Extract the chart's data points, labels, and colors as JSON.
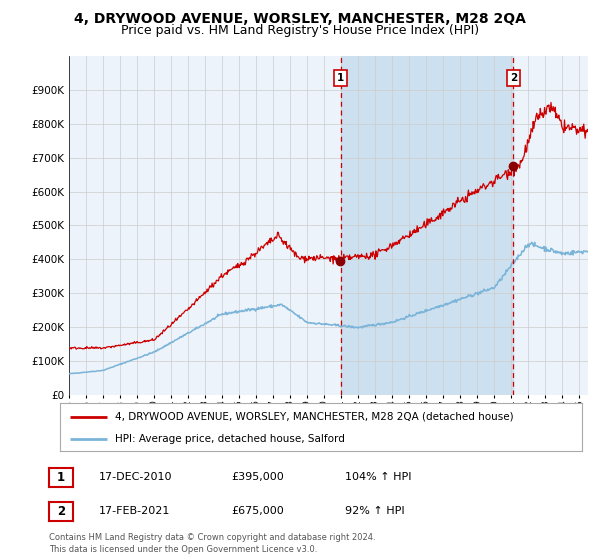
{
  "title": "4, DRYWOOD AVENUE, WORSLEY, MANCHESTER, M28 2QA",
  "subtitle": "Price paid vs. HM Land Registry's House Price Index (HPI)",
  "legend_line1": "4, DRYWOOD AVENUE, WORSLEY, MANCHESTER, M28 2QA (detached house)",
  "legend_line2": "HPI: Average price, detached house, Salford",
  "annotation1_date": "17-DEC-2010",
  "annotation1_price": "£395,000",
  "annotation1_hpi": "104% ↑ HPI",
  "annotation1_year": 2010.96,
  "annotation1_value": 395000,
  "annotation2_date": "17-FEB-2021",
  "annotation2_price": "£675,000",
  "annotation2_hpi": "92% ↑ HPI",
  "annotation2_year": 2021.12,
  "annotation2_value": 675000,
  "hpi_color": "#7ab4d8",
  "price_color": "#cc0000",
  "marker_color": "#8b0000",
  "shade_color": "#cce0f0",
  "vline_color": "#cc0000",
  "grid_color": "#cccccc",
  "bg_color": "#ffffff",
  "plot_bg_color": "#edf3fa",
  "ylim": [
    0,
    1000000
  ],
  "yticks": [
    0,
    100000,
    200000,
    300000,
    400000,
    500000,
    600000,
    700000,
    800000,
    900000
  ],
  "xstart": 1995,
  "xend": 2025.5,
  "copyright_text": "Contains HM Land Registry data © Crown copyright and database right 2024.\nThis data is licensed under the Open Government Licence v3.0.",
  "footnote_color": "#555555",
  "title_fontsize": 10,
  "subtitle_fontsize": 9
}
